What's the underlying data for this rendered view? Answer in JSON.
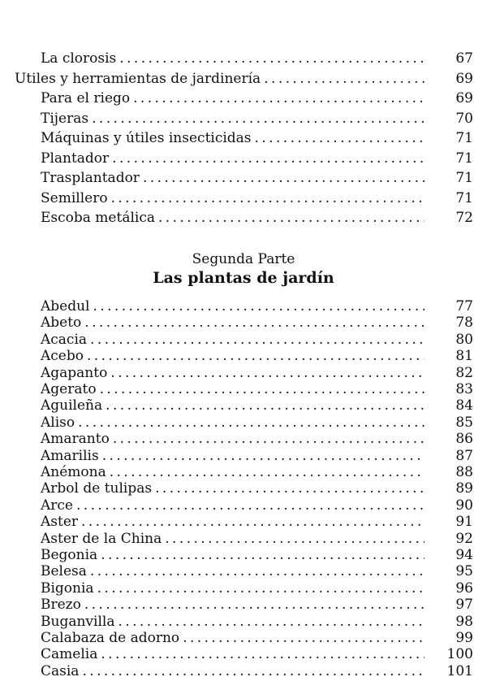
{
  "section1": [
    {
      "label": "La clorosis",
      "page": "67",
      "level": 2
    },
    {
      "label": "Utiles y herramientas de jardinería",
      "page": "69",
      "level": 1
    },
    {
      "label": "Para el riego",
      "page": "69",
      "level": 2
    },
    {
      "label": "Tijeras",
      "page": "70",
      "level": 2
    },
    {
      "label": "Máquinas y útiles insecticidas",
      "page": "71",
      "level": 2
    },
    {
      "label": "Plantador",
      "page": "71",
      "level": 2
    },
    {
      "label": "Trasplantador",
      "page": "71",
      "level": 2
    },
    {
      "label": "Semillero",
      "page": "71",
      "level": 2
    },
    {
      "label": "Escoba metálica",
      "page": "72",
      "level": 2
    }
  ],
  "part": {
    "subtitle": "Segunda Parte",
    "title": "Las plantas de jardín"
  },
  "section2": [
    {
      "label": "Abedul",
      "page": "77"
    },
    {
      "label": "Abeto",
      "page": "78"
    },
    {
      "label": "Acacia",
      "page": "80"
    },
    {
      "label": "Acebo",
      "page": "81"
    },
    {
      "label": "Agapanto",
      "page": "82"
    },
    {
      "label": "Agerato",
      "page": "83"
    },
    {
      "label": "Aguileña",
      "page": "84"
    },
    {
      "label": "Aliso",
      "page": "85"
    },
    {
      "label": "Amaranto",
      "page": "86"
    },
    {
      "label": "Amarilis",
      "page": "87"
    },
    {
      "label": "Anémona",
      "page": "88"
    },
    {
      "label": "Arbol de tulipas",
      "page": "89"
    },
    {
      "label": "Arce",
      "page": "90"
    },
    {
      "label": "Aster",
      "page": "91"
    },
    {
      "label": "Aster de la China",
      "page": "92"
    },
    {
      "label": "Begonia",
      "page": "94"
    },
    {
      "label": "Belesa",
      "page": "95"
    },
    {
      "label": "Bigonia",
      "page": "96"
    },
    {
      "label": "Brezo",
      "page": "97"
    },
    {
      "label": "Buganvilla",
      "page": "98"
    },
    {
      "label": "Calabaza de adorno",
      "page": "99"
    },
    {
      "label": "Camelia",
      "page": "100"
    },
    {
      "label": "Casia",
      "page": "101"
    }
  ]
}
